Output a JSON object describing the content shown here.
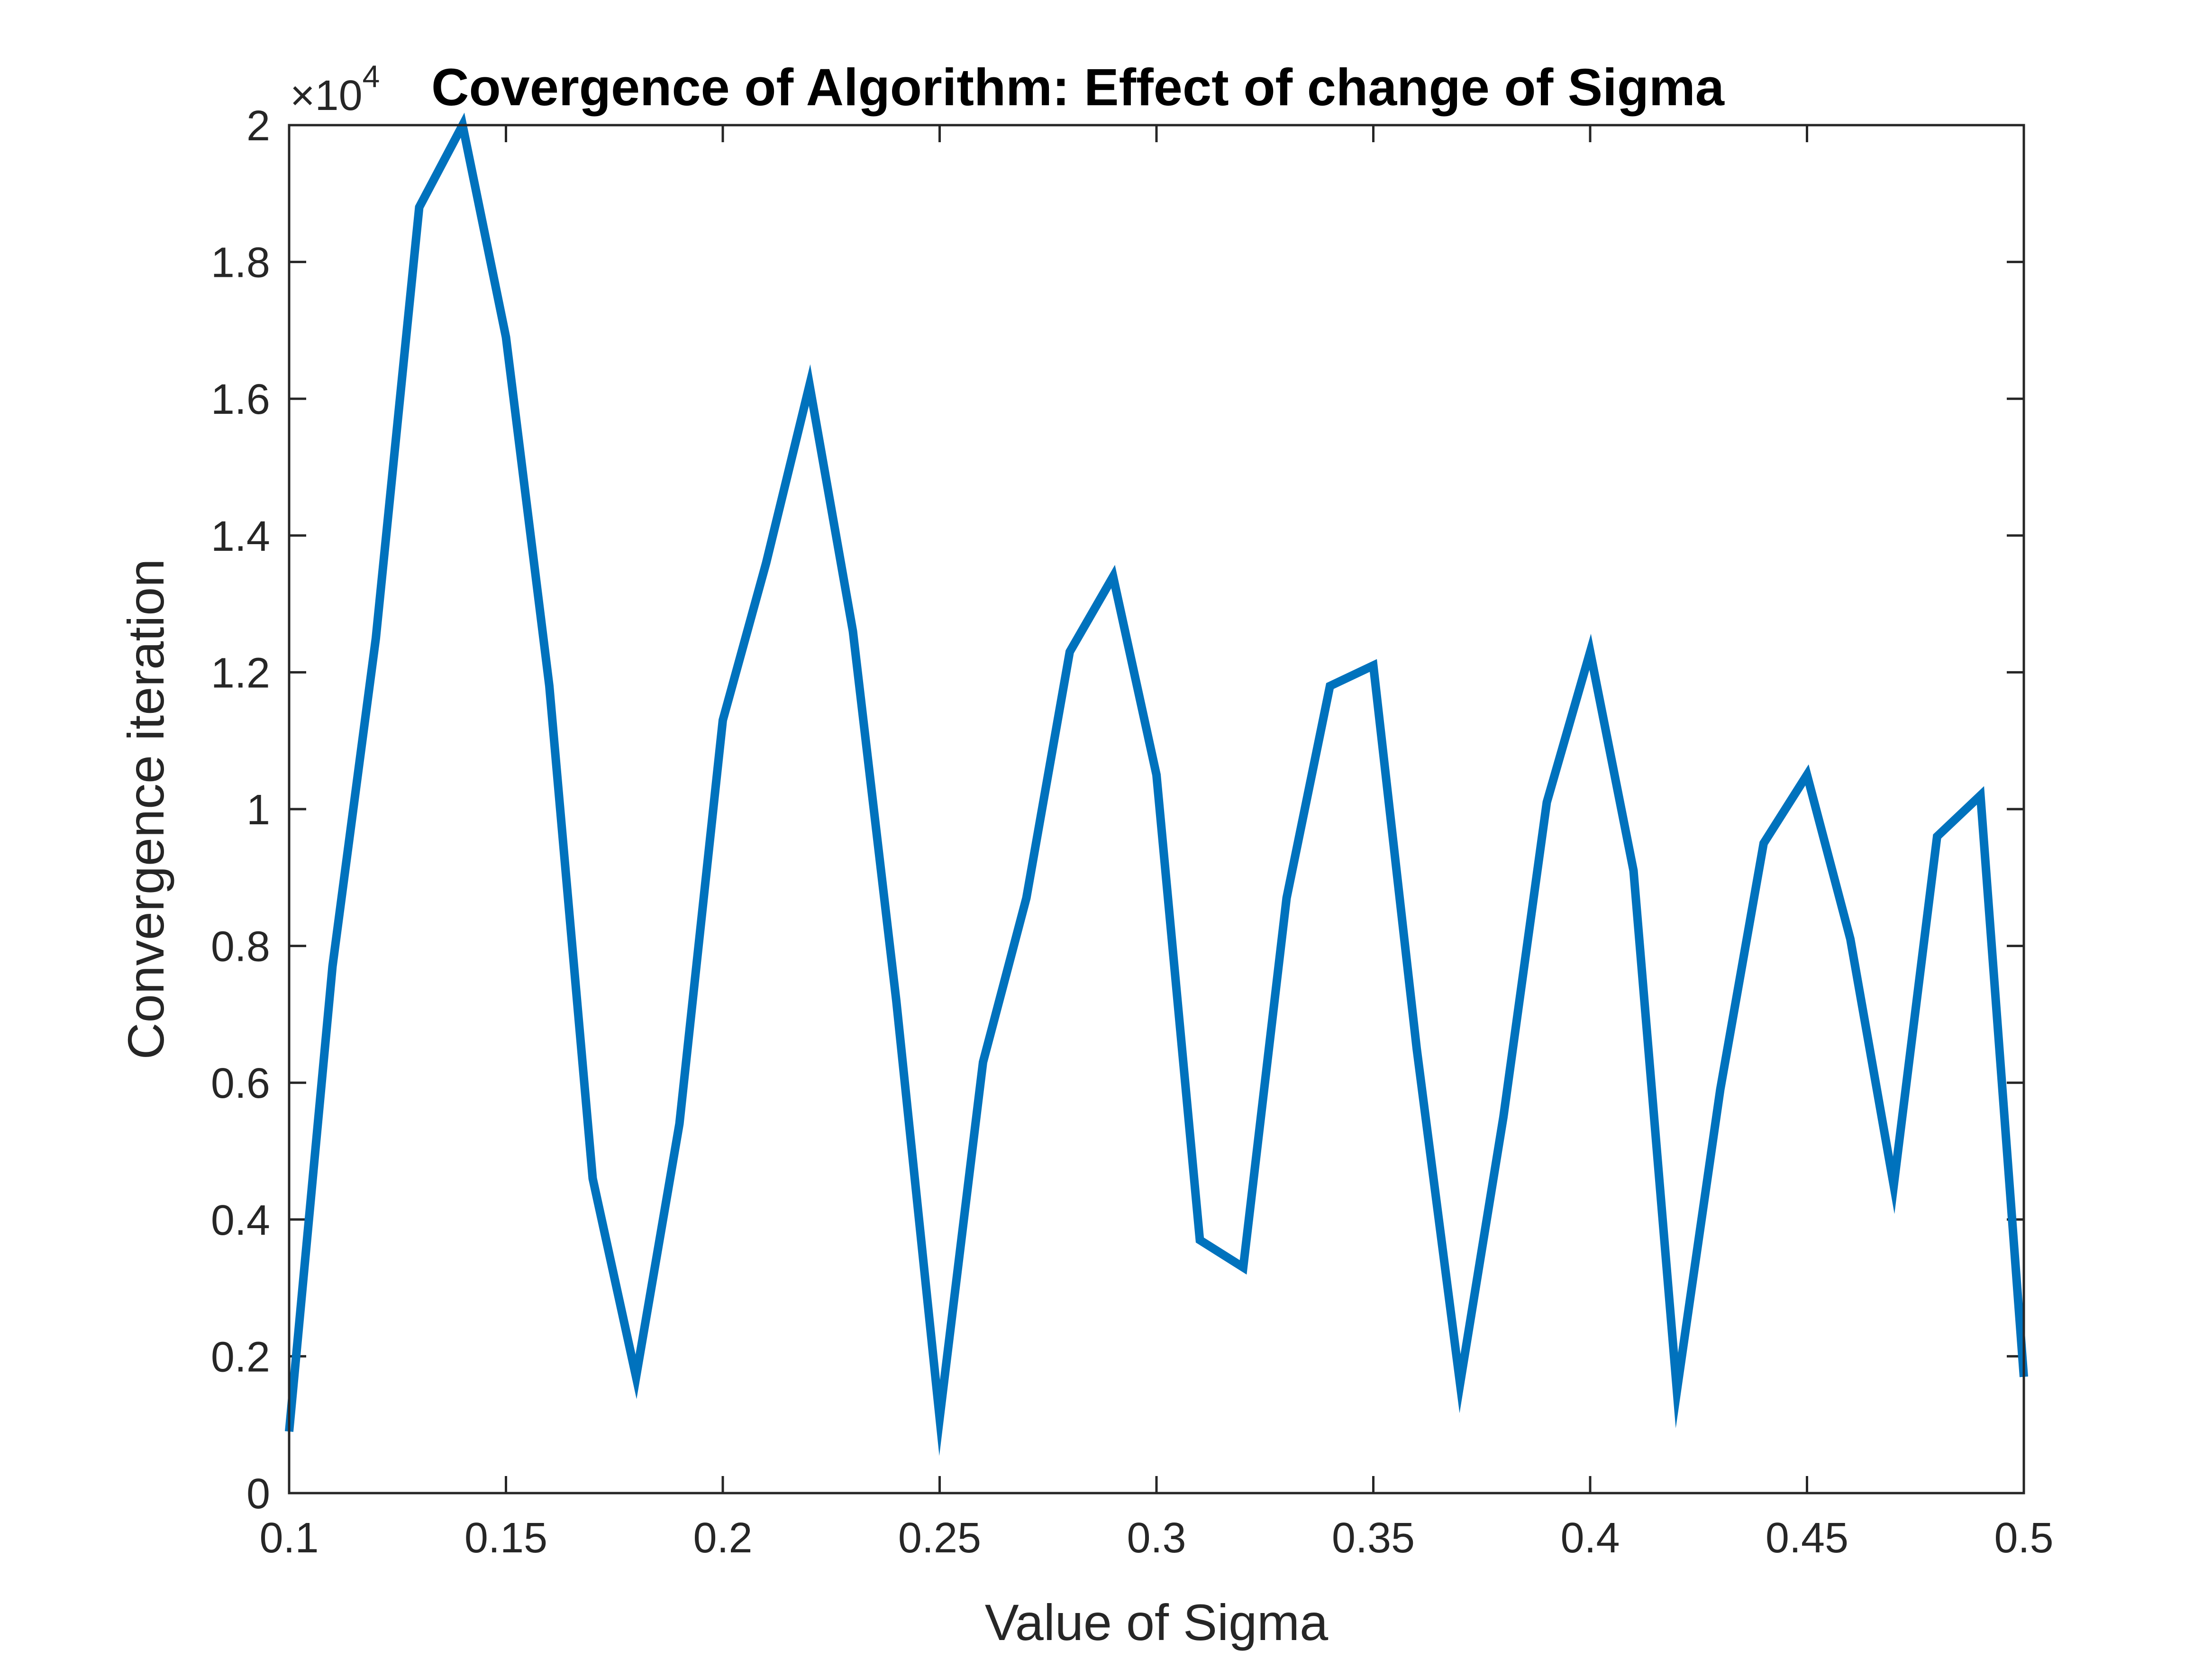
{
  "chart_data": {
    "type": "line",
    "title": "Covergence of Algorithm: Effect of change of Sigma",
    "xlabel": "Value of Sigma",
    "ylabel": "Convergence iteration",
    "y_exponent_label": "×10",
    "y_exponent_power": "4",
    "xlim": [
      0.1,
      0.5
    ],
    "ylim": [
      0,
      2
    ],
    "x_ticks": [
      0.1,
      0.15,
      0.2,
      0.25,
      0.3,
      0.35,
      0.4,
      0.45,
      0.5
    ],
    "x_tick_labels": [
      "0.1",
      "0.15",
      "0.2",
      "0.25",
      "0.3",
      "0.35",
      "0.4",
      "0.45",
      "0.5"
    ],
    "y_ticks": [
      0,
      0.2,
      0.4,
      0.6,
      0.8,
      1,
      1.2,
      1.4,
      1.6,
      1.8,
      2
    ],
    "y_tick_labels": [
      "0",
      "0.2",
      "0.4",
      "0.6",
      "0.8",
      "1",
      "1.2",
      "1.4",
      "1.6",
      "1.8",
      "2"
    ],
    "grid": false,
    "series": [
      {
        "color": "#0072BD",
        "x": [
          0.1,
          0.11,
          0.12,
          0.13,
          0.14,
          0.15,
          0.16,
          0.17,
          0.18,
          0.19,
          0.2,
          0.21,
          0.22,
          0.23,
          0.24,
          0.25,
          0.26,
          0.27,
          0.28,
          0.29,
          0.3,
          0.31,
          0.32,
          0.33,
          0.34,
          0.35,
          0.36,
          0.37,
          0.38,
          0.39,
          0.4,
          0.41,
          0.42,
          0.43,
          0.44,
          0.45,
          0.46,
          0.47,
          0.48,
          0.49,
          0.5
        ],
        "y": [
          0.09,
          0.77,
          1.25,
          1.88,
          2.0,
          1.69,
          1.18,
          0.46,
          0.17,
          0.54,
          1.13,
          1.36,
          1.62,
          1.26,
          0.72,
          0.11,
          0.63,
          0.87,
          1.23,
          1.34,
          1.05,
          0.37,
          0.33,
          0.87,
          1.18,
          1.21,
          0.65,
          0.16,
          0.55,
          1.01,
          1.23,
          0.91,
          0.15,
          0.59,
          0.95,
          1.05,
          0.81,
          0.45,
          0.96,
          1.02,
          0.17
        ]
      }
    ]
  }
}
